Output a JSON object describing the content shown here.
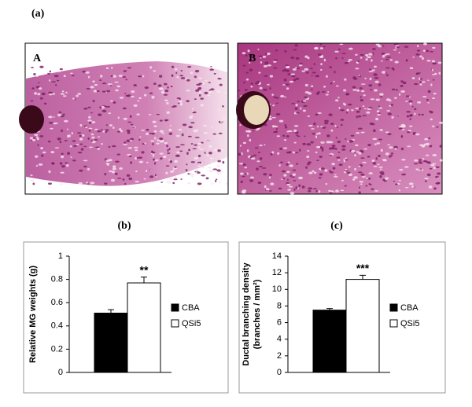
{
  "figure": {
    "panel_a": "(a)",
    "image_a": "A",
    "image_b": "B",
    "panel_b": "(b)",
    "panel_c": "(c)"
  },
  "chart_data": [
    {
      "type": "bar",
      "ylabel": "Relative MG weights (g)",
      "categories": [
        null
      ],
      "series": [
        {
          "name": "CBA",
          "color": "#000000",
          "values": [
            0.51
          ],
          "errors": [
            0.03
          ]
        },
        {
          "name": "QSi5",
          "color": "#ffffff",
          "values": [
            0.77
          ],
          "errors": [
            0.05
          ],
          "annotation": "**"
        }
      ],
      "ylim": [
        0,
        1
      ],
      "yticks": [
        0,
        0.2,
        0.4,
        0.6,
        0.8,
        1
      ]
    },
    {
      "type": "bar",
      "ylabel": [
        "Ductal branching density",
        "(branches / mm²)"
      ],
      "categories": [
        null
      ],
      "series": [
        {
          "name": "CBA",
          "color": "#000000",
          "values": [
            7.5
          ],
          "errors": [
            0.2
          ]
        },
        {
          "name": "QSi5",
          "color": "#ffffff",
          "values": [
            11.2
          ],
          "errors": [
            0.5
          ],
          "annotation": "***"
        }
      ],
      "ylim": [
        0,
        14
      ],
      "yticks": [
        0,
        2,
        4,
        6,
        8,
        10,
        12,
        14
      ]
    }
  ]
}
